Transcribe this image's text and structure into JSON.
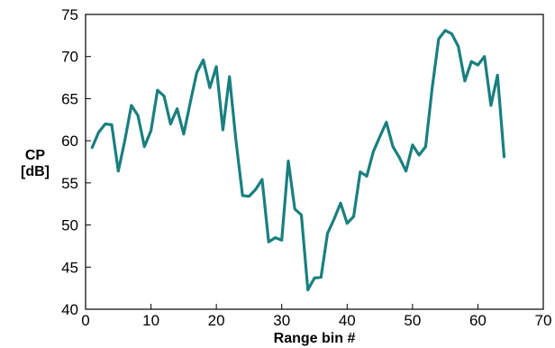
{
  "chart_data": {
    "type": "line",
    "xlabel": "Range bin #",
    "ylabel_lines": [
      "CP",
      "[dB]"
    ],
    "xlim": [
      0,
      70
    ],
    "ylim": [
      40,
      75
    ],
    "x_ticks": [
      0,
      10,
      20,
      30,
      40,
      50,
      60,
      70
    ],
    "y_ticks": [
      40,
      45,
      50,
      55,
      60,
      65,
      70,
      75
    ],
    "grid": false,
    "legend": "none",
    "series": [
      {
        "color": "#1a7f7f",
        "x": [
          1,
          2,
          3,
          4,
          5,
          6,
          7,
          8,
          9,
          10,
          11,
          12,
          13,
          14,
          15,
          16,
          17,
          18,
          19,
          20,
          21,
          22,
          23,
          24,
          25,
          26,
          27,
          28,
          29,
          30,
          31,
          32,
          33,
          34,
          35,
          36,
          37,
          38,
          39,
          40,
          41,
          42,
          43,
          44,
          45,
          46,
          47,
          48,
          49,
          50,
          51,
          52,
          53,
          54,
          55,
          56,
          57,
          58,
          59,
          60,
          61,
          62,
          63,
          64
        ],
        "y": [
          59.2,
          61.0,
          62.0,
          61.9,
          56.4,
          60.0,
          64.2,
          63.0,
          59.3,
          61.2,
          66.0,
          65.3,
          62.0,
          63.8,
          60.8,
          64.5,
          68.1,
          69.6,
          66.3,
          68.8,
          61.3,
          67.6,
          60.0,
          53.5,
          53.4,
          54.2,
          55.4,
          48.0,
          48.5,
          48.2,
          57.6,
          51.9,
          51.2,
          42.3,
          43.7,
          43.8,
          49.0,
          50.7,
          52.6,
          50.2,
          51.0,
          56.3,
          55.8,
          58.7,
          60.5,
          62.2,
          59.3,
          58.0,
          56.4,
          59.5,
          58.3,
          59.3,
          66.2,
          72.1,
          73.1,
          72.7,
          71.2,
          67.1,
          69.4,
          69.0,
          70.0,
          64.2,
          67.8,
          58.1
        ]
      }
    ]
  }
}
